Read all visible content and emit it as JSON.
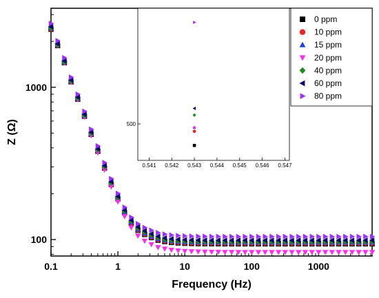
{
  "chart_data": [
    {
      "type": "scatter",
      "title": "",
      "xlabel": "Frequency (Hz)",
      "ylabel": "Z (Ω)",
      "x_scale": "log",
      "y_scale": "log",
      "xlim": [
        0.1,
        6300
      ],
      "ylim": [
        78,
        3300
      ],
      "x_tick_labels": [
        "0.1",
        "1",
        "10",
        "100",
        "1000"
      ],
      "x_tick_values": [
        0.1,
        1,
        10,
        100,
        1000
      ],
      "y_tick_labels": [
        "100",
        "1000"
      ],
      "y_tick_values": [
        100,
        1000
      ],
      "grid": false,
      "legend_position": "top-right",
      "x": [
        0.1,
        0.1259,
        0.1585,
        0.1995,
        0.2512,
        0.3162,
        0.3981,
        0.5012,
        0.631,
        0.7943,
        1.0,
        1.259,
        1.585,
        1.995,
        2.512,
        3.162,
        3.981,
        5.012,
        6.31,
        7.943,
        10,
        12.59,
        15.85,
        19.95,
        25.12,
        31.62,
        39.81,
        50.12,
        63.1,
        79.43,
        100,
        125.9,
        158.5,
        199.5,
        251.2,
        316.2,
        398.1,
        501.2,
        631,
        794.3,
        1000,
        1259,
        1585,
        1995,
        2512,
        3162,
        3981,
        5012,
        6310
      ],
      "series": [
        {
          "name": "0 ppm",
          "color": "#000000",
          "marker": "square",
          "values": [
            2400,
            1875,
            1450,
            1085,
            835,
            645,
            490,
            380,
            295,
            230,
            185,
            150,
            128,
            115,
            108,
            103,
            99,
            97,
            95.7,
            95,
            94.5,
            94.2,
            94,
            93.9,
            93.8,
            93.8,
            93.7,
            93.7,
            93.7,
            93.7,
            93.7,
            93.7,
            93.7,
            93.7,
            93.7,
            93.7,
            93.7,
            93.7,
            93.7,
            93.7,
            93.7,
            93.7,
            93.7,
            93.7,
            93.7,
            93.7,
            93.7,
            93.7,
            93.7
          ]
        },
        {
          "name": "10 ppm",
          "color": "#e8262b",
          "marker": "circle",
          "values": [
            2420,
            1885,
            1455,
            1090,
            840,
            648,
            493,
            383,
            297,
            232,
            186,
            151,
            129,
            116,
            109,
            104,
            100,
            98,
            96.7,
            96,
            95.5,
            95.2,
            95,
            94.9,
            94.8,
            94.8,
            94.7,
            94.7,
            94.7,
            94.7,
            94.7,
            94.7,
            94.7,
            94.7,
            94.7,
            94.7,
            94.7,
            94.7,
            94.7,
            94.7,
            94.7,
            94.7,
            94.7,
            94.7,
            94.7,
            94.7,
            94.7,
            94.7,
            94.7
          ]
        },
        {
          "name": "15 ppm",
          "color": "#1f3fe8",
          "marker": "triangle-up",
          "values": [
            2440,
            1895,
            1462,
            1095,
            845,
            651,
            496,
            385,
            299,
            234,
            187,
            152,
            130,
            117,
            110,
            105,
            101,
            99,
            97.7,
            97,
            96.5,
            96.2,
            96,
            95.9,
            95.8,
            95.8,
            95.7,
            95.7,
            95.7,
            95.7,
            95.7,
            95.7,
            95.7,
            95.7,
            95.7,
            95.7,
            95.7,
            95.7,
            95.7,
            95.7,
            95.7,
            95.7,
            95.7,
            95.7,
            95.7,
            95.7,
            95.7,
            95.7,
            95.7
          ]
        },
        {
          "name": "20 ppm",
          "color": "#ff2bf0",
          "marker": "triangle-down",
          "values": [
            2430,
            1880,
            1450,
            1080,
            830,
            638,
            482,
            372,
            287,
            222,
            177,
            142,
            120,
            106,
            98,
            93,
            89,
            87,
            85.5,
            84.6,
            84,
            83.6,
            83.3,
            83.1,
            83,
            82.9,
            82.8,
            82.8,
            82.7,
            82.7,
            82.7,
            82.7,
            82.7,
            82.7,
            82.7,
            82.7,
            82.7,
            82.7,
            82.7,
            82.7,
            82.7,
            82.7,
            82.7,
            82.7,
            82.7,
            82.7,
            82.7,
            82.7,
            82.7
          ]
        },
        {
          "name": "40 ppm",
          "color": "#1e8a1e",
          "marker": "diamond",
          "values": [
            2450,
            1900,
            1468,
            1100,
            850,
            655,
            499,
            388,
            301,
            236,
            189,
            154,
            132,
            119,
            112,
            107,
            103,
            100.5,
            99,
            98.2,
            97.7,
            97.4,
            97.2,
            97.1,
            97,
            97,
            96.9,
            96.9,
            96.9,
            96.9,
            96.9,
            96.9,
            96.9,
            96.9,
            96.9,
            96.9,
            96.9,
            96.9,
            96.9,
            96.9,
            96.9,
            96.9,
            96.9,
            96.9,
            96.9,
            96.9,
            96.9,
            96.9,
            96.9
          ]
        },
        {
          "name": "60 ppm",
          "color": "#0a0a6e",
          "marker": "triangle-left",
          "values": [
            2500,
            1930,
            1490,
            1115,
            862,
            665,
            507,
            394,
            306,
            240,
            192,
            156,
            134,
            121,
            114,
            109,
            105,
            102.5,
            101,
            100.2,
            99.7,
            99.4,
            99.2,
            99.1,
            99,
            99,
            98.9,
            98.9,
            98.9,
            98.9,
            98.9,
            98.9,
            98.9,
            98.9,
            98.9,
            98.9,
            98.9,
            98.9,
            98.9,
            98.9,
            98.9,
            98.9,
            98.9,
            98.9,
            98.9,
            98.9,
            98.9,
            98.9,
            98.9
          ]
        },
        {
          "name": "80 ppm",
          "color": "#9b30ff",
          "marker": "triangle-right",
          "values": [
            2620,
            2020,
            1560,
            1165,
            900,
            695,
            530,
            412,
            320,
            251,
            201,
            163,
            140,
            127,
            120,
            115,
            111,
            108.5,
            107,
            106.2,
            105.6,
            105.2,
            105,
            104.9,
            104.8,
            104.8,
            104.7,
            104.7,
            104.7,
            104.7,
            104.7,
            104.7,
            104.7,
            104.7,
            104.7,
            104.7,
            104.7,
            104.7,
            104.7,
            104.7,
            104.7,
            104.7,
            104.7,
            104.7,
            104.7,
            104.7,
            104.7,
            104.7,
            104.7
          ]
        }
      ]
    },
    {
      "type": "scatter",
      "title": "",
      "xlabel": "",
      "ylabel": "",
      "x_scale": "linear",
      "y_scale": "log",
      "xlim": [
        0.5405,
        0.5472
      ],
      "ylim": [
        350,
        1550
      ],
      "x_tick_labels": [
        "0.541",
        "0.542",
        "0.543",
        "0.544",
        "0.545",
        "0.546",
        "0.547"
      ],
      "x_tick_values": [
        0.541,
        0.542,
        0.543,
        0.544,
        0.545,
        0.546,
        0.547
      ],
      "y_tick_labels": [
        "500"
      ],
      "y_tick_values": [
        500
      ],
      "grid": false,
      "points": [
        {
          "series": "0 ppm",
          "x": 0.543,
          "y": 405
        },
        {
          "series": "10 ppm",
          "x": 0.543,
          "y": 465
        },
        {
          "series": "15 ppm",
          "x": 0.543,
          "y": 483
        },
        {
          "series": "20 ppm",
          "x": 0.543,
          "y": 481
        },
        {
          "series": "40 ppm",
          "x": 0.543,
          "y": 545
        },
        {
          "series": "60 ppm",
          "x": 0.543,
          "y": 582
        },
        {
          "series": "80 ppm",
          "x": 0.543,
          "y": 1350
        }
      ]
    }
  ]
}
